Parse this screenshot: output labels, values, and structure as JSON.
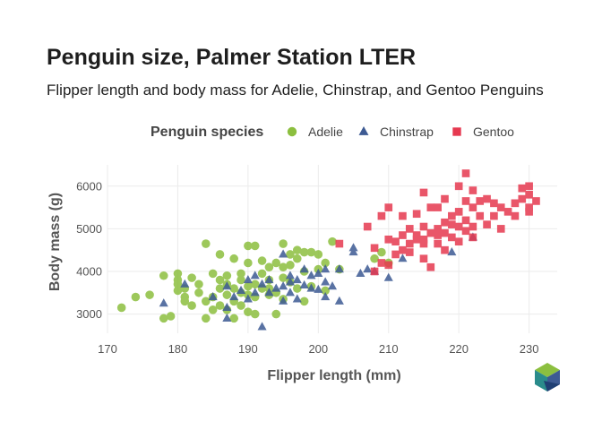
{
  "chart_data": {
    "type": "scatter",
    "title": "Penguin size, Palmer Station LTER",
    "subtitle": "Flipper length and body mass for Adelie, Chinstrap, and Gentoo Penguins",
    "xlabel": "Flipper length (mm)",
    "ylabel": "Body mass (g)",
    "xlim": [
      170,
      234
    ],
    "ylim": [
      2550,
      6500
    ],
    "xticks": [
      170,
      180,
      190,
      200,
      210,
      220,
      230
    ],
    "yticks": [
      3000,
      4000,
      5000,
      6000
    ],
    "grid": true,
    "legend": {
      "title": "Penguin species",
      "placement": "top"
    },
    "series": [
      {
        "name": "Adelie",
        "marker": "circle",
        "color": "#8cbf3f",
        "points": [
          [
            172,
            3150
          ],
          [
            174,
            3400
          ],
          [
            176,
            3450
          ],
          [
            178,
            2900
          ],
          [
            178,
            3900
          ],
          [
            179,
            2950
          ],
          [
            180,
            3950
          ],
          [
            180,
            3800
          ],
          [
            180,
            3700
          ],
          [
            180,
            3550
          ],
          [
            181,
            3600
          ],
          [
            181,
            3400
          ],
          [
            181,
            3300
          ],
          [
            182,
            3200
          ],
          [
            182,
            3850
          ],
          [
            183,
            3700
          ],
          [
            183,
            3500
          ],
          [
            184,
            4650
          ],
          [
            184,
            3300
          ],
          [
            184,
            2900
          ],
          [
            185,
            3400
          ],
          [
            185,
            3100
          ],
          [
            185,
            3950
          ],
          [
            186,
            3200
          ],
          [
            186,
            3600
          ],
          [
            186,
            3800
          ],
          [
            186,
            4400
          ],
          [
            187,
            3100
          ],
          [
            187,
            3450
          ],
          [
            187,
            3700
          ],
          [
            187,
            3900
          ],
          [
            188,
            2900
          ],
          [
            188,
            3300
          ],
          [
            188,
            3600
          ],
          [
            188,
            4300
          ],
          [
            189,
            3200
          ],
          [
            189,
            3500
          ],
          [
            189,
            3800
          ],
          [
            189,
            3950
          ],
          [
            190,
            3050
          ],
          [
            190,
            3450
          ],
          [
            190,
            3650
          ],
          [
            190,
            4200
          ],
          [
            190,
            4600
          ],
          [
            191,
            3000
          ],
          [
            191,
            3700
          ],
          [
            191,
            3400
          ],
          [
            191,
            4600
          ],
          [
            192,
            3600
          ],
          [
            192,
            3950
          ],
          [
            192,
            4250
          ],
          [
            193,
            3450
          ],
          [
            193,
            3600
          ],
          [
            193,
            4100
          ],
          [
            193,
            3800
          ],
          [
            194,
            3000
          ],
          [
            194,
            3500
          ],
          [
            194,
            4200
          ],
          [
            195,
            3350
          ],
          [
            195,
            3850
          ],
          [
            195,
            4100
          ],
          [
            195,
            4650
          ],
          [
            196,
            3750
          ],
          [
            196,
            4150
          ],
          [
            196,
            4400
          ],
          [
            197,
            3600
          ],
          [
            197,
            4300
          ],
          [
            197,
            4500
          ],
          [
            198,
            3300
          ],
          [
            198,
            4000
          ],
          [
            198,
            4450
          ],
          [
            199,
            3650
          ],
          [
            199,
            4450
          ],
          [
            200,
            4050
          ],
          [
            200,
            4400
          ],
          [
            201,
            3550
          ],
          [
            201,
            4200
          ],
          [
            202,
            4700
          ],
          [
            203,
            4050
          ],
          [
            208,
            4300
          ],
          [
            209,
            4450
          ],
          [
            210,
            4200
          ]
        ]
      },
      {
        "name": "Chinstrap",
        "marker": "triangle",
        "color": "#3d5a93",
        "points": [
          [
            178,
            3250
          ],
          [
            181,
            3700
          ],
          [
            185,
            3400
          ],
          [
            187,
            2900
          ],
          [
            187,
            3150
          ],
          [
            187,
            3650
          ],
          [
            188,
            3400
          ],
          [
            189,
            3550
          ],
          [
            190,
            3350
          ],
          [
            190,
            3800
          ],
          [
            191,
            3500
          ],
          [
            191,
            3900
          ],
          [
            192,
            3700
          ],
          [
            192,
            2700
          ],
          [
            193,
            3500
          ],
          [
            193,
            3800
          ],
          [
            194,
            3600
          ],
          [
            195,
            3650
          ],
          [
            195,
            4400
          ],
          [
            195,
            3300
          ],
          [
            196,
            3500
          ],
          [
            196,
            3750
          ],
          [
            196,
            3900
          ],
          [
            197,
            3800
          ],
          [
            197,
            3350
          ],
          [
            198,
            3675
          ],
          [
            198,
            4050
          ],
          [
            199,
            3600
          ],
          [
            199,
            3900
          ],
          [
            200,
            3575
          ],
          [
            200,
            3950
          ],
          [
            201,
            4050
          ],
          [
            201,
            3400
          ],
          [
            201,
            3750
          ],
          [
            202,
            3650
          ],
          [
            203,
            4050
          ],
          [
            203,
            3300
          ],
          [
            205,
            4550
          ],
          [
            205,
            4450
          ],
          [
            206,
            3950
          ],
          [
            207,
            4050
          ],
          [
            208,
            4000
          ],
          [
            210,
            3850
          ],
          [
            212,
            4300
          ],
          [
            219,
            4450
          ],
          [
            222,
            4800
          ]
        ]
      },
      {
        "name": "Gentoo",
        "marker": "square",
        "color": "#e63950",
        "points": [
          [
            203,
            4650
          ],
          [
            207,
            5050
          ],
          [
            208,
            4000
          ],
          [
            208,
            4550
          ],
          [
            209,
            4200
          ],
          [
            209,
            5300
          ],
          [
            210,
            4150
          ],
          [
            210,
            4750
          ],
          [
            210,
            5500
          ],
          [
            211,
            4400
          ],
          [
            211,
            4700
          ],
          [
            212,
            4500
          ],
          [
            212,
            4850
          ],
          [
            212,
            5300
          ],
          [
            213,
            4650
          ],
          [
            213,
            5000
          ],
          [
            213,
            4450
          ],
          [
            214,
            4750
          ],
          [
            214,
            5350
          ],
          [
            214,
            4850
          ],
          [
            215,
            4300
          ],
          [
            215,
            4650
          ],
          [
            215,
            5050
          ],
          [
            215,
            5850
          ],
          [
            215,
            4750
          ],
          [
            216,
            4900
          ],
          [
            216,
            5500
          ],
          [
            216,
            4100
          ],
          [
            217,
            4650
          ],
          [
            217,
            5000
          ],
          [
            217,
            5500
          ],
          [
            217,
            4850
          ],
          [
            218,
            4500
          ],
          [
            218,
            5150
          ],
          [
            218,
            4900
          ],
          [
            218,
            5700
          ],
          [
            219,
            4800
          ],
          [
            219,
            5300
          ],
          [
            219,
            5100
          ],
          [
            220,
            4700
          ],
          [
            220,
            5050
          ],
          [
            220,
            5400
          ],
          [
            220,
            6000
          ],
          [
            221,
            4950
          ],
          [
            221,
            5200
          ],
          [
            221,
            5650
          ],
          [
            221,
            6300
          ],
          [
            222,
            5050
          ],
          [
            222,
            5500
          ],
          [
            222,
            4800
          ],
          [
            222,
            5900
          ],
          [
            223,
            5300
          ],
          [
            223,
            5650
          ],
          [
            224,
            5100
          ],
          [
            224,
            5700
          ],
          [
            225,
            5300
          ],
          [
            225,
            5600
          ],
          [
            226,
            5000
          ],
          [
            226,
            5500
          ],
          [
            227,
            5400
          ],
          [
            228,
            5300
          ],
          [
            228,
            5600
          ],
          [
            229,
            5700
          ],
          [
            229,
            5950
          ],
          [
            230,
            5500
          ],
          [
            230,
            5800
          ],
          [
            230,
            6000
          ],
          [
            231,
            5650
          ],
          [
            230,
            5400
          ]
        ]
      }
    ]
  }
}
